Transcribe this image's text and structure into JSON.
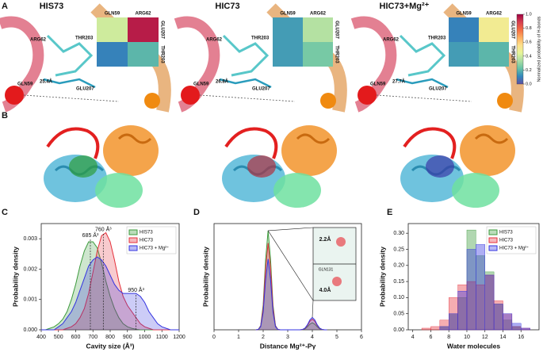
{
  "panel_labels": [
    "A",
    "B",
    "C",
    "D",
    "E"
  ],
  "structures": [
    {
      "title": "HIS73",
      "residues": [
        "ARG62",
        "THR203",
        "GLN59",
        "GLU207"
      ],
      "distance": "25.4Å"
    },
    {
      "title": "HIC73",
      "residues": [
        "ARG62",
        "THR203",
        "GLN59",
        "GLU207"
      ],
      "distance": "26.8Å"
    },
    {
      "title": "HIC73+Mg²⁺",
      "residues": [
        "ARG62",
        "THR203",
        "GLN59",
        "GLU207"
      ],
      "distance": "27.7Å"
    }
  ],
  "chart_data": [
    {
      "type": "heatmap",
      "x": [
        "GLN59",
        "ARG62"
      ],
      "y": [
        "GLU207",
        "THR203"
      ],
      "values": [
        [
          0.4,
          0.95
        ],
        [
          0.1,
          0.2
        ]
      ],
      "zlim": [
        0,
        1
      ],
      "colorscale": [
        "#5e4fa2",
        "#3288bd",
        "#66c2a5",
        "#abdda4",
        "#e6f598",
        "#fee08b",
        "#fdae61",
        "#f46d43",
        "#d53e4f",
        "#9e0142"
      ]
    },
    {
      "type": "heatmap",
      "x": [
        "GLN59",
        "ARG62"
      ],
      "y": [
        "GLU207",
        "THR203"
      ],
      "values": [
        [
          0.15,
          0.35
        ],
        [
          0.15,
          0.25
        ]
      ],
      "zlim": [
        0,
        1
      ],
      "colorscale": [
        "#5e4fa2",
        "#3288bd",
        "#66c2a5",
        "#abdda4",
        "#e6f598",
        "#fee08b",
        "#fdae61",
        "#f46d43",
        "#d53e4f",
        "#9e0142"
      ]
    },
    {
      "type": "heatmap",
      "x": [
        "GLN59",
        "ARG62"
      ],
      "y": [
        "GLU207",
        "THR203"
      ],
      "values": [
        [
          0.1,
          0.5
        ],
        [
          0.15,
          0.2
        ]
      ],
      "zlim": [
        0,
        1
      ],
      "colorscale": [
        "#5e4fa2",
        "#3288bd",
        "#66c2a5",
        "#abdda4",
        "#e6f598",
        "#fee08b",
        "#fdae61",
        "#f46d43",
        "#d53e4f",
        "#9e0142"
      ],
      "colorbar_label": "Normalized probability of H-bonds",
      "zticks": [
        {
          "value": 0,
          "label": "0.0"
        },
        0.2,
        0.4,
        0.6,
        0.8,
        {
          "value": 1,
          "label": "1.0"
        }
      ]
    },
    {
      "type": "line",
      "xlabel": "Cavity size (Å³)",
      "ylabel": "Probability density",
      "xlim": [
        400,
        1200
      ],
      "ylim": [
        0,
        0.0035
      ],
      "xticks": [
        400,
        500,
        600,
        700,
        800,
        900,
        1000,
        1100,
        1200
      ],
      "yticks": [
        {
          "value": 0,
          "label": "0.000"
        },
        0.001,
        0.002,
        0.003
      ],
      "x": [
        400,
        425,
        450,
        475,
        500,
        525,
        550,
        575,
        600,
        625,
        650,
        675,
        700,
        725,
        750,
        775,
        800,
        825,
        850,
        875,
        900,
        925,
        950,
        975,
        1000,
        1025,
        1050,
        1075,
        1100,
        1125,
        1150,
        1175,
        1200
      ],
      "series": [
        {
          "name": "HIS73",
          "color": "#3c9a3c",
          "values": [
            0,
            0,
            5e-05,
            0.0001,
            0.0002,
            0.00035,
            0.0006,
            0.001,
            0.0015,
            0.0021,
            0.0026,
            0.0029,
            0.0029,
            0.0027,
            0.0022,
            0.0016,
            0.0011,
            0.0007,
            0.0004,
            0.0002,
            0.0001,
            5e-05,
            2e-05,
            0,
            0,
            0,
            0,
            0,
            0,
            0,
            0,
            0,
            0
          ]
        },
        {
          "name": "HIC73",
          "color": "#e5313b",
          "values": [
            0,
            0,
            0,
            0,
            0,
            0,
            5e-05,
            0.0001,
            0.0002,
            0.0004,
            0.0007,
            0.0012,
            0.0019,
            0.0026,
            0.0031,
            0.0032,
            0.0029,
            0.0023,
            0.0016,
            0.0011,
            0.0008,
            0.0006,
            0.0004,
            0.0002,
            0.0001,
            5e-05,
            0,
            0,
            0,
            0,
            0,
            0,
            0
          ]
        },
        {
          "name": "HIC73 + Mg²⁺",
          "color": "#3434e0",
          "values": [
            0,
            0,
            0,
            0,
            0.0001,
            0.0002,
            0.0004,
            0.0006,
            0.0009,
            0.0013,
            0.0017,
            0.0021,
            0.0023,
            0.0024,
            0.0023,
            0.0021,
            0.0018,
            0.0015,
            0.0013,
            0.0012,
            0.0012,
            0.0012,
            0.0012,
            0.0011,
            0.0009,
            0.0006,
            0.0004,
            0.0002,
            0.0001,
            5e-05,
            0,
            0,
            0
          ]
        }
      ],
      "legend": "upper right",
      "annotations": [
        {
          "text": "685 Å³",
          "x": 685,
          "y": 0.0031
        },
        {
          "text": "760 Å³",
          "x": 760,
          "y": 0.0033
        },
        {
          "text": "950 Å³",
          "x": 950,
          "y": 0.0013
        }
      ]
    },
    {
      "type": "line",
      "xlabel": "Distance Mg²⁺-Pγ",
      "ylabel": "Probability density",
      "xlim": [
        0,
        6
      ],
      "ylim": [
        0,
        3
      ],
      "xticks": [
        0,
        1,
        2,
        3,
        4,
        5,
        6
      ],
      "x": [
        1.7,
        1.8,
        1.9,
        2.0,
        2.1,
        2.2,
        2.3,
        2.4,
        2.5,
        2.6,
        2.7,
        3.4,
        3.5,
        3.6,
        3.7,
        3.8,
        3.9,
        4.0,
        4.1,
        4.2,
        4.3,
        4.4,
        4.5,
        4.6
      ],
      "series": [
        {
          "color": "#3c9a3c",
          "values": [
            0,
            0.01,
            0.12,
            0.7,
            1.99,
            2.8,
            1.99,
            0.7,
            0.12,
            0.01,
            0,
            0,
            0.001,
            0.006,
            0.027,
            0.082,
            0.16,
            0.2,
            0.16,
            0.082,
            0.027,
            0.006,
            0.001,
            0
          ]
        },
        {
          "color": "#e5313b",
          "values": [
            0,
            0.01,
            0.11,
            0.61,
            1.74,
            2.45,
            1.74,
            0.61,
            0.11,
            0.01,
            0,
            0,
            0.001,
            0.009,
            0.04,
            0.12,
            0.24,
            0.3,
            0.24,
            0.12,
            0.04,
            0.009,
            0.001,
            0
          ]
        },
        {
          "color": "#3434e0",
          "values": [
            0,
            0.008,
            0.09,
            0.5,
            1.42,
            2.0,
            1.42,
            0.5,
            0.09,
            0.008,
            0,
            0,
            0.001,
            0.01,
            0.047,
            0.14,
            0.28,
            0.35,
            0.28,
            0.14,
            0.047,
            0.01,
            0.001,
            0
          ]
        }
      ],
      "annotations": [
        {
          "text": "2.2Å"
        },
        {
          "text": "GLN131"
        },
        {
          "text": "4.0Å"
        }
      ]
    },
    {
      "type": "histogram",
      "xlabel": "Water molecules",
      "ylabel": "Probability density",
      "xlim": [
        3.5,
        18
      ],
      "ylim": [
        0,
        0.33
      ],
      "xticks": [
        4,
        6,
        8,
        10,
        12,
        14,
        16
      ],
      "yticks": [
        {
          "value": 0,
          "label": "0.00"
        },
        0.05,
        {
          "value": 0.1,
          "label": "0.10"
        },
        0.15,
        {
          "value": 0.2,
          "label": "0.20"
        },
        0.25,
        {
          "value": 0.3,
          "label": "0.30"
        }
      ],
      "bins": [
        5,
        6,
        7,
        8,
        9,
        10,
        11,
        12,
        13,
        14,
        15,
        16,
        17
      ],
      "series": [
        {
          "name": "HIS73",
          "color": "#3c9a3c",
          "values": [
            0,
            0,
            0.01,
            0.05,
            0.1,
            0.31,
            0.23,
            0.18,
            0.08,
            0.03,
            0.01,
            0
          ]
        },
        {
          "name": "HIC73",
          "color": "#e5313b",
          "values": [
            0.005,
            0.01,
            0.03,
            0.1,
            0.14,
            0.15,
            0.14,
            0.17,
            0.09,
            0.05,
            0.01,
            0.005
          ]
        },
        {
          "name": "HIC73 + Mg²⁺",
          "color": "#3434e0",
          "values": [
            0,
            0,
            0.01,
            0.05,
            0.12,
            0.25,
            0.265,
            0.17,
            0.08,
            0.05,
            0.02,
            0.005
          ]
        }
      ],
      "legend": "upper right"
    }
  ]
}
